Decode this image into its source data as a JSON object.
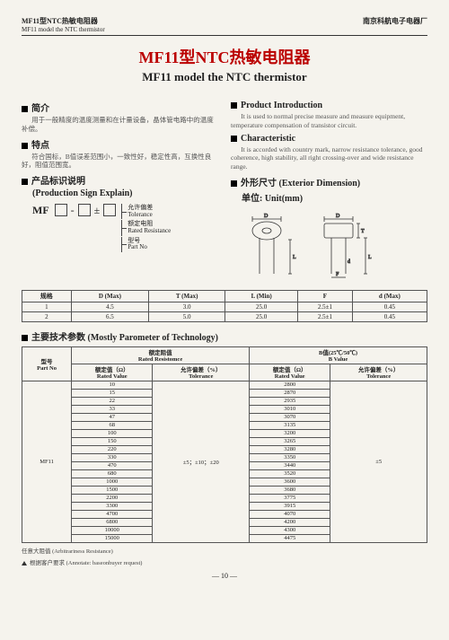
{
  "header": {
    "left_cn": "MF11型NTC热敏电阻器",
    "left_en": "MF11 model the NTC thermistor",
    "right": "南京科航电子电器厂"
  },
  "title": {
    "cn": "MF11型NTC热敏电阻器",
    "en": "MF11 model the NTC thermistor"
  },
  "left": {
    "intro_h": "简介",
    "intro_body": "用于一般精度的温度测量和在计量设备，晶体管电路中的温度补偿。",
    "feat_h": "特点",
    "feat_body": "符合国标，B值误差范围小，一致性好，稳定性高，互换性良好，阻值范围宽。",
    "sign_h_cn": "产品标识说明",
    "sign_h_en": "(Production Sign Explain)",
    "sign_prefix": "MF",
    "legend": [
      {
        "cn": "允许偏差",
        "en": "Tolerance"
      },
      {
        "cn": "额定电阻",
        "en": "Rated Resistance"
      },
      {
        "cn": "型号",
        "en": "Part No"
      }
    ]
  },
  "right": {
    "intro_h": "Product Introduction",
    "intro_body": "It is used to normal precise measure and measure equipment, temperature compensation of transistor circuit.",
    "char_h": "Characteristic",
    "char_body": "It is accorded with country mark, narrow resistance tolerance, good coherence, high stability, all right crossing-over and wide resistance range.",
    "ext_h_cn": "外形尺寸 (Exterior Dimension)",
    "ext_h_unit": "单位: Unit(mm)"
  },
  "spec_table": {
    "headers": [
      "规格",
      "D (Max)",
      "T (Max)",
      "L (Min)",
      "F",
      "d (Max)"
    ],
    "rows": [
      [
        "1",
        "4.5",
        "3.0",
        "25.0",
        "2.5±1",
        "0.45"
      ],
      [
        "2",
        "6.5",
        "5.0",
        "25.0",
        "2.5±1",
        "0.45"
      ]
    ]
  },
  "main": {
    "heading": "主要技术参数 (Mostly Parometer of Technology)",
    "col_partno_cn": "型号",
    "col_partno_en": "Part No",
    "col_rated_cn": "额定阻值",
    "col_rated_en": "Rated Resistomce",
    "col_b_cn": "B值(25℃/50℃)",
    "col_b_en": "B Value",
    "sub_rated_val_cn": "额定值（Ω）",
    "sub_rated_val_en": "Rated Value",
    "sub_tol_cn": "允许偏差（%）",
    "sub_tol_en": "Tolerance",
    "partno": "MF11",
    "tol_rated": "±5；±10；±20",
    "tol_b": "±5",
    "rows": [
      [
        "10",
        "2800"
      ],
      [
        "15",
        "2870"
      ],
      [
        "22",
        "2935"
      ],
      [
        "33",
        "3010"
      ],
      [
        "47",
        "3070"
      ],
      [
        "68",
        "3135"
      ],
      [
        "100",
        "3200"
      ],
      [
        "150",
        "3265"
      ],
      [
        "220",
        "3280"
      ],
      [
        "330",
        "3350"
      ],
      [
        "470",
        "3440"
      ],
      [
        "680",
        "3520"
      ],
      [
        "1000",
        "3600"
      ],
      [
        "1500",
        "3680"
      ],
      [
        "2200",
        "3775"
      ],
      [
        "3300",
        "3915"
      ],
      [
        "4700",
        "4070"
      ],
      [
        "6800",
        "4200"
      ],
      [
        "10000",
        "4300"
      ],
      [
        "15000",
        "4475"
      ]
    ]
  },
  "footnotes": {
    "f1": "任意大阻值 (Arbitrariness Resistance)",
    "f2": "根据客户要求 (Annotate: baseonbuyer request)"
  },
  "page": "— 10 —"
}
